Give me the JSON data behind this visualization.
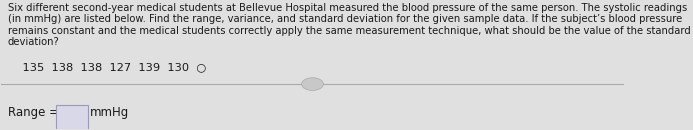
{
  "bg_color": "#e0e0e0",
  "text_color": "#1a1a1a",
  "paragraph": "Six different second-year medical students at Bellevue Hospital measured the blood pressure of the same person. The systolic readings (in mmHg) are listed below. Find the range, variance, and standard deviation for the given sample data. If the subject’s blood pressure remains constant and the medical students correctly apply the same measurement technique, what should be the value of the standard deviation?",
  "data_line": "    135  138  138  127  139  130",
  "circle_symbol": "○",
  "divider_color": "#aaaaaa",
  "range_label": "Range =",
  "range_unit": "mmHg",
  "box_color": "#d8d8e8",
  "box_edge_color": "#9999bb",
  "font_size_para": 7.2,
  "font_size_data": 8.2,
  "font_size_range": 8.5
}
